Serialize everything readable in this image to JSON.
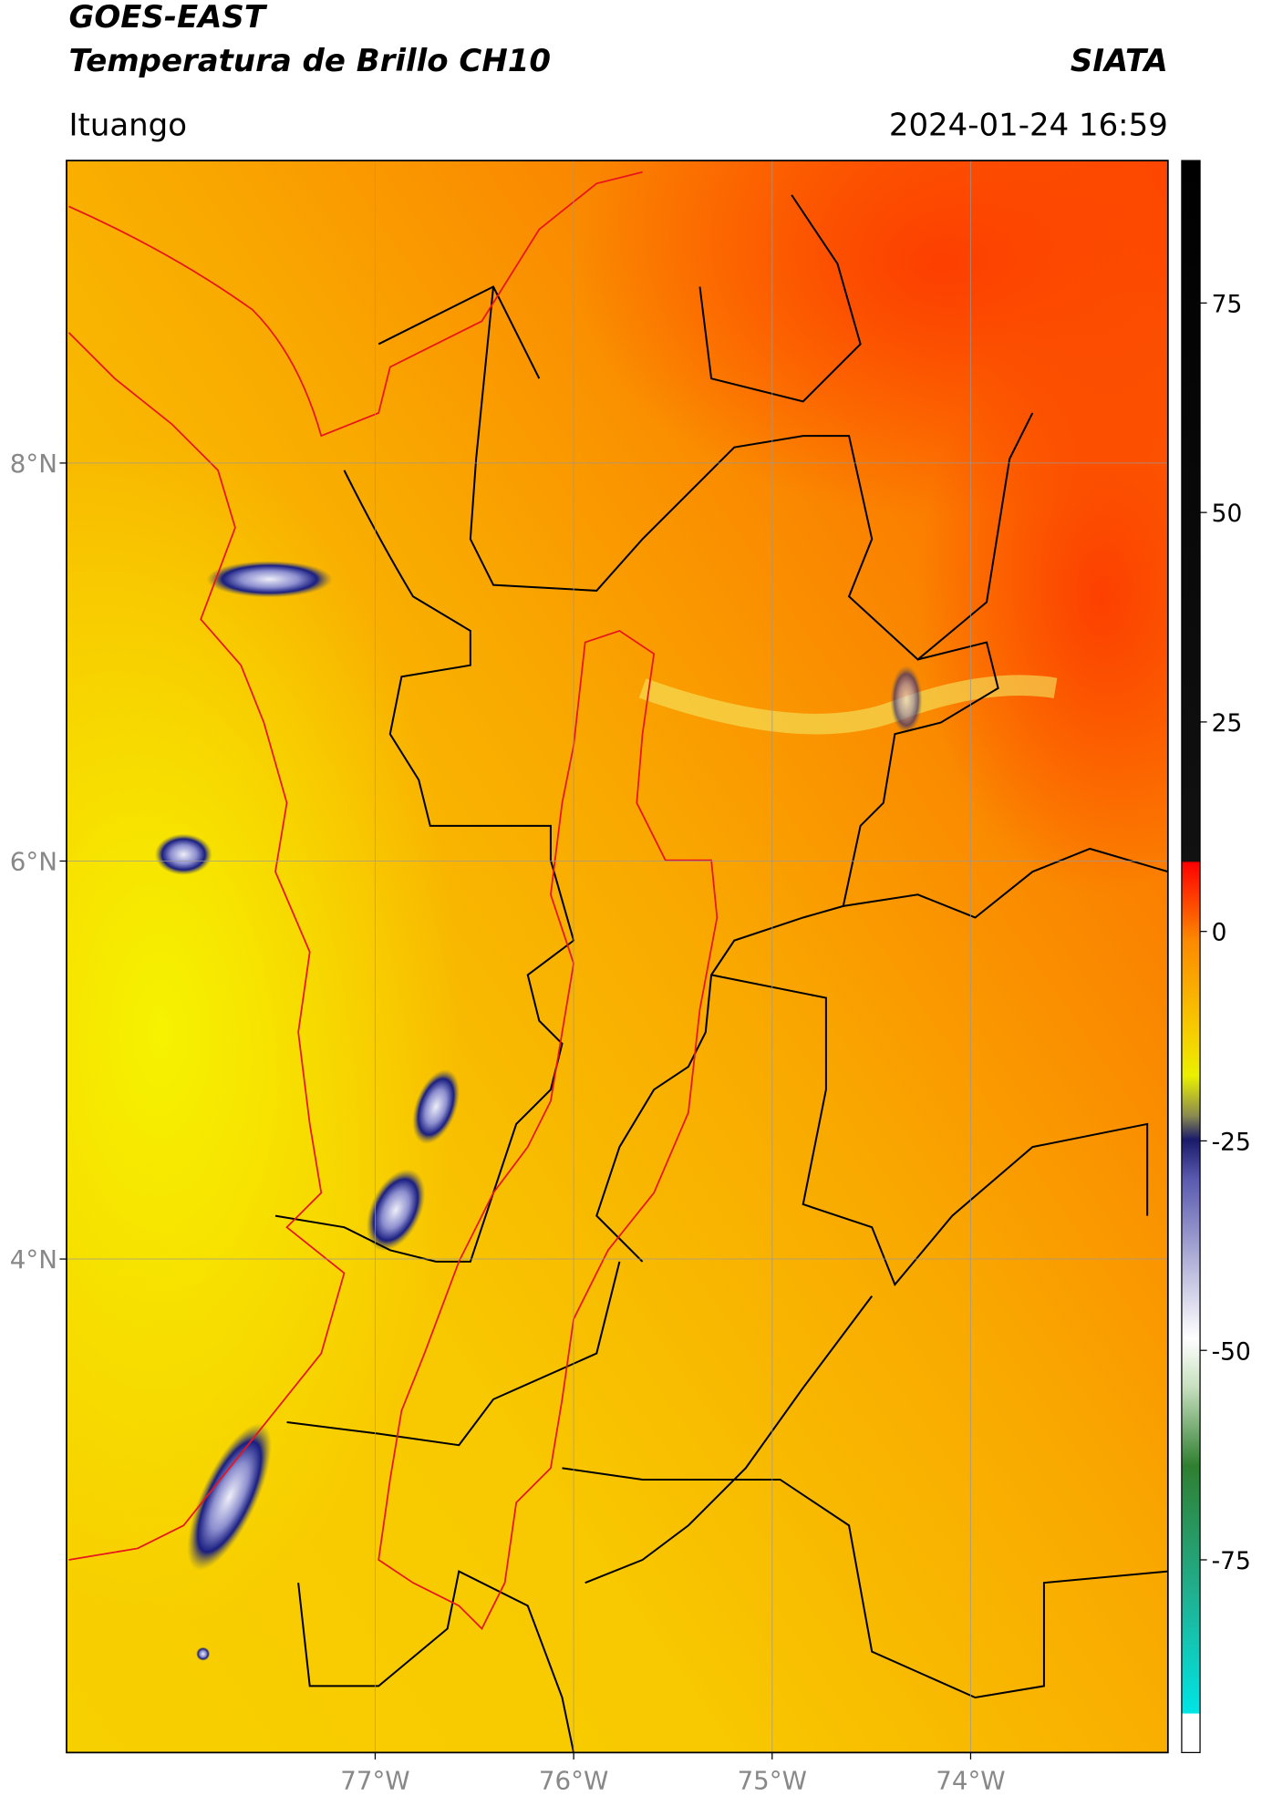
{
  "header": {
    "title_line1": "GOES-EAST",
    "title_line2": "Temperatura de Brillo CH10",
    "source": "SIATA",
    "location": "Ituango",
    "datetime": "2024-01-24 16:59"
  },
  "map": {
    "lon_range": [
      -78.555,
      -73.006
    ],
    "lat_range": [
      1.52,
      9.52
    ],
    "lon_ticks": [
      {
        "value": -77,
        "label": "77°W"
      },
      {
        "value": -76,
        "label": "76°W"
      },
      {
        "value": -75,
        "label": "75°W"
      },
      {
        "value": -74,
        "label": "74°W"
      }
    ],
    "lat_ticks": [
      {
        "value": 8,
        "label": "8°N"
      },
      {
        "value": 6,
        "label": "6°N"
      },
      {
        "value": 4,
        "label": "4°N"
      }
    ],
    "grid": true
  },
  "colorbar": {
    "range": [
      -98,
      92
    ],
    "ticks": [
      75,
      50,
      25,
      0,
      -25,
      -50,
      -75
    ]
  }
}
